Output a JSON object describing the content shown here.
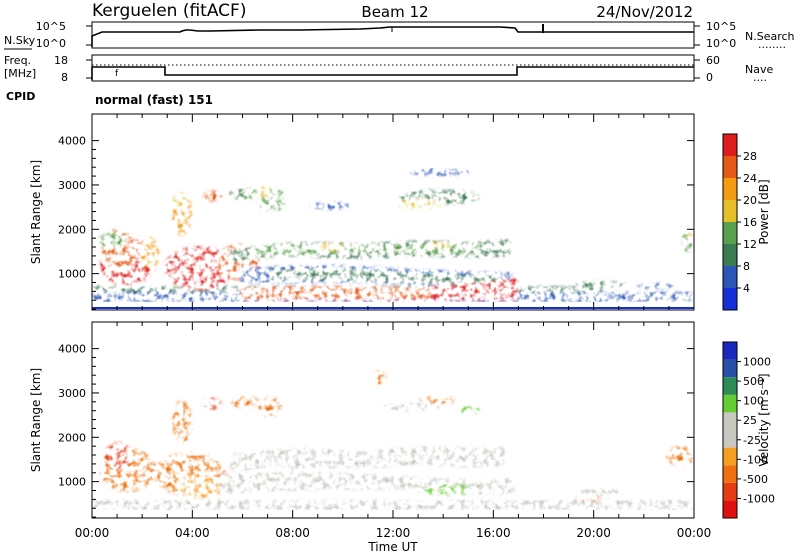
{
  "header": {
    "station": "Kerguelen (fitACF)",
    "beam": "Beam 12",
    "date": "24/Nov/2012"
  },
  "sky_panel": {
    "left_label": "N.Sky",
    "left_ticks": [
      "10^5",
      "10^0"
    ],
    "right_ticks": [
      "10^5",
      "10^0"
    ],
    "right_label": "N.Search",
    "right_label_line": "........"
  },
  "freq_panel": {
    "left_label_1": "Freq.",
    "left_label_2": "[MHz]",
    "left_ticks": [
      "8",
      "18"
    ],
    "right_ticks": [
      "60",
      "0"
    ],
    "right_label": "Nave",
    "right_label_line": "....",
    "cpid_label": "CPID",
    "cpid_value": "normal (fast) 151",
    "marker": "f"
  },
  "colors": {
    "power_scale": [
      "#1530d8",
      "#2a56b8",
      "#3c7a52",
      "#5aa04c",
      "#e6c02a",
      "#f39c12",
      "#e55a16",
      "#df1c1c"
    ],
    "velocity_scale": [
      "#e01010",
      "#e63c14",
      "#ee7010",
      "#f5a020",
      "#c8c8c0",
      "#c8c8c0",
      "#66cc33",
      "#2e8b57",
      "#2a4fa8",
      "#1a28c0"
    ]
  },
  "chart_data": [
    {
      "type": "heatmap",
      "title": "",
      "ylabel": "Slant Range [km]",
      "ylim": [
        180,
        4600
      ],
      "y_ticks": [
        "1000",
        "2000",
        "3000",
        "4000"
      ],
      "colorbar_label": "Power [dB]",
      "colorbar_ticks": [
        "4",
        "8",
        "12",
        "16",
        "20",
        "24",
        "28"
      ],
      "colorbar_range": [
        0,
        32
      ],
      "x_ticks": [
        "00:00",
        "04:00",
        "08:00",
        "12:00",
        "16:00",
        "20:00",
        "00:00"
      ],
      "xlim_hours": [
        0,
        24
      ]
    },
    {
      "type": "heatmap",
      "title": "",
      "ylabel": "Slant Range [km]",
      "ylim": [
        180,
        4600
      ],
      "y_ticks": [
        "1000",
        "2000",
        "3000",
        "4000"
      ],
      "colorbar_label": "Velocity [m s⁻¹]",
      "colorbar_ticks": [
        "1000",
        "500",
        "100",
        "25",
        "-25",
        "-100",
        "-500",
        "-1000"
      ],
      "x_ticks": [
        "00:00",
        "04:00",
        "08:00",
        "12:00",
        "16:00",
        "20:00",
        "00:00"
      ],
      "xlim_hours": [
        0,
        24
      ],
      "xlabel": "Time UT"
    }
  ]
}
